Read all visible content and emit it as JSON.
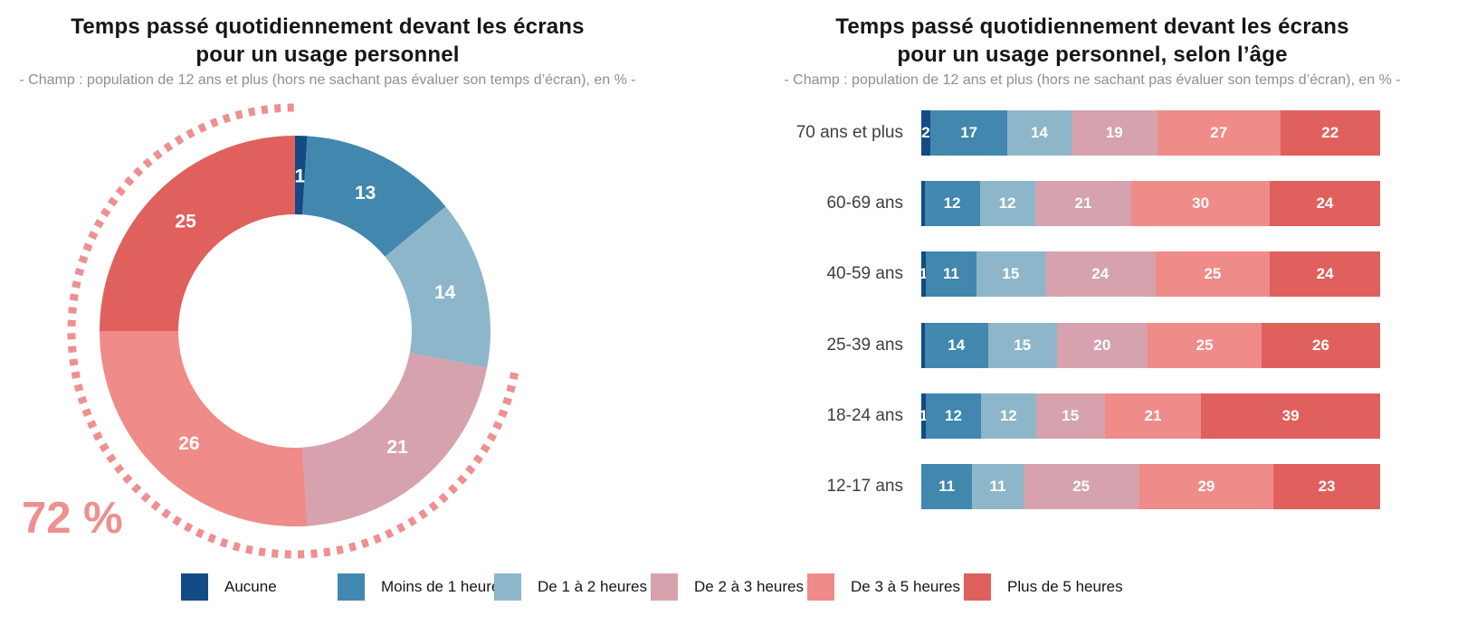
{
  "palette": {
    "aucune": "#144b84",
    "moins_1h": "#4187ae",
    "de_1_a_2h": "#8db6ca",
    "de_2_a_3h": "#d6a2ad",
    "de_3_a_5h": "#ef8b88",
    "plus_5h": "#e0605d",
    "callout": "#ef8f8f",
    "title_text": "#161616",
    "subtitle_text": "#8f8f8f",
    "axis_label_text": "#3f3f3f",
    "value_label_text": "#ffffff"
  },
  "left_chart": {
    "title_line1": "Temps passé quotidiennement devant les écrans",
    "title_line2": "pour un usage personnel",
    "subtitle": "- Champ : population de 12 ans et plus (hors ne sachant pas évaluer son temps d’écran), en % -",
    "callout": "72 %"
  },
  "right_chart": {
    "title_line1": "Temps passé quotidiennement devant les écrans",
    "title_line2": "pour un usage personnel, selon l’âge",
    "subtitle": "- Champ : population de 12 ans et plus (hors ne sachant pas évaluer son temps d’écran), en % -"
  },
  "legend": {
    "items": [
      {
        "key": "aucune",
        "label": "Aucune"
      },
      {
        "key": "moins_1h",
        "label": "Moins de 1 heure"
      },
      {
        "key": "de_1_a_2h",
        "label": "De 1 à 2 heures"
      },
      {
        "key": "de_2_a_3h",
        "label": "De 2 à 3 heures"
      },
      {
        "key": "de_3_a_5h",
        "label": "De 3 à 5 heures"
      },
      {
        "key": "plus_5h",
        "label": "Plus de 5 heures"
      }
    ]
  },
  "chart_data": [
    {
      "type": "pie",
      "variant": "donut",
      "title": "Temps passé quotidiennement devant les écrans pour un usage personnel",
      "subtitle": "- Champ : population de 12 ans et plus (hors ne sachant pas évaluer son temps d’écran), en % -",
      "categories": [
        "Aucune",
        "Moins de 1 heure",
        "De 1 à 2 heures",
        "De 2 à 3 heures",
        "De 3 à 5 heures",
        "Plus de 5 heures"
      ],
      "values": [
        1,
        13,
        14,
        21,
        26,
        25
      ],
      "labels": [
        "1",
        "13",
        "14",
        "21",
        "26",
        "25"
      ],
      "color_keys": [
        "aucune",
        "moins_1h",
        "de_1_a_2h",
        "de_2_a_3h",
        "de_3_a_5h",
        "plus_5h"
      ],
      "start_angle_deg": 0,
      "direction": "clockwise",
      "callout": {
        "text": "72 %",
        "arc_start_pct": 28,
        "arc_end_pct": 100
      }
    },
    {
      "type": "bar",
      "stacked": true,
      "orientation": "horizontal",
      "title": "Temps passé quotidiennement devant les écrans pour un usage personnel, selon l’âge",
      "subtitle": "- Champ : population de 12 ans et plus (hors ne sachant pas évaluer son temps d’écran), en % -",
      "xlim": [
        0,
        100
      ],
      "categories": [
        "70 ans et plus",
        "60-69 ans",
        "40-59 ans",
        "25-39 ans",
        "18-24 ans",
        "12-17 ans"
      ],
      "series": [
        {
          "name": "Aucune",
          "key": "aucune",
          "values": [
            2,
            0.7,
            1,
            0.7,
            1,
            0
          ],
          "labels": [
            "2",
            "",
            "1",
            "",
            "1",
            ""
          ]
        },
        {
          "name": "Moins de 1 heure",
          "key": "moins_1h",
          "values": [
            17,
            12,
            11,
            14,
            12,
            11
          ]
        },
        {
          "name": "De 1 à 2 heures",
          "key": "de_1_a_2h",
          "values": [
            14,
            12,
            15,
            15,
            12,
            11
          ]
        },
        {
          "name": "De 2 à 3 heures",
          "key": "de_2_a_3h",
          "values": [
            19,
            21,
            24,
            20,
            15,
            25
          ]
        },
        {
          "name": "De 3 à 5 heures",
          "key": "de_3_a_5h",
          "values": [
            27,
            30,
            25,
            25,
            21,
            29
          ]
        },
        {
          "name": "Plus de 5 heures",
          "key": "plus_5h",
          "values": [
            22,
            24,
            24,
            26,
            39,
            23
          ]
        }
      ]
    }
  ]
}
